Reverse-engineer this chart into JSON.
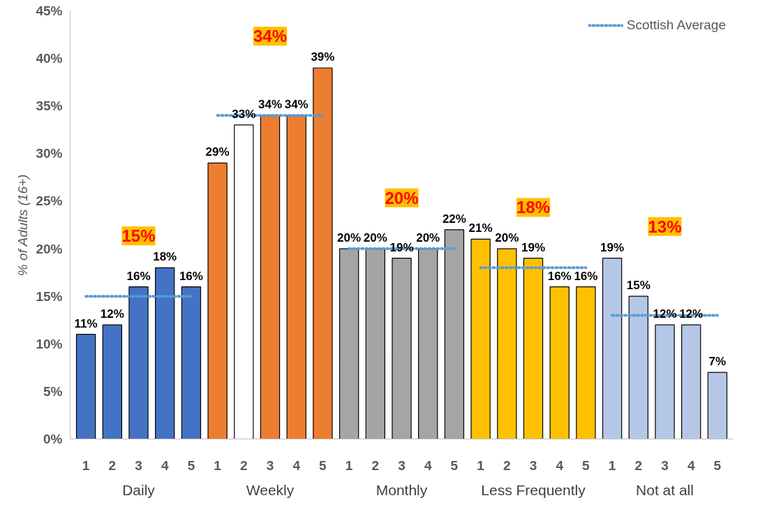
{
  "chart_data": {
    "type": "bar",
    "ylabel": "% of Adults (16+)",
    "categories": [
      "1",
      "2",
      "3",
      "4",
      "5",
      "1",
      "2",
      "3",
      "4",
      "5",
      "1",
      "2",
      "3",
      "4",
      "5",
      "1",
      "2",
      "3",
      "4",
      "5",
      "1",
      "2",
      "3",
      "4",
      "5"
    ],
    "values": [
      11,
      12,
      16,
      18,
      16,
      29,
      33,
      34,
      34,
      39,
      20,
      20,
      19,
      20,
      22,
      21,
      20,
      19,
      16,
      16,
      19,
      15,
      12,
      12,
      7
    ],
    "value_labels": [
      "11%",
      "12%",
      "16%",
      "18%",
      "16%",
      "29%",
      "33%",
      "34%",
      "34%",
      "39%",
      "20%",
      "20%",
      "19%",
      "20%",
      "22%",
      "21%",
      "20%",
      "19%",
      "16%",
      "16%",
      "19%",
      "15%",
      "12%",
      "12%",
      "7%"
    ],
    "colors": [
      "#4472c4",
      "#4472c4",
      "#4472c4",
      "#4472c4",
      "#4472c4",
      "#ed7d31",
      "#ffffff",
      "#ed7d31",
      "#ed7d31",
      "#ed7d31",
      "#a5a5a5",
      "#a5a5a5",
      "#a5a5a5",
      "#a5a5a5",
      "#a5a5a5",
      "#ffc000",
      "#ffc000",
      "#ffc000",
      "#ffc000",
      "#ffc000",
      "#b4c7e7",
      "#b4c7e7",
      "#b4c7e7",
      "#b4c7e7",
      "#b4c7e7"
    ],
    "series": [
      {
        "name": "Scottish Average",
        "type": "line",
        "line_style": "dotted",
        "color": "#5b9bd5",
        "values": [
          15,
          15,
          15,
          15,
          15,
          null,
          null,
          null,
          null,
          null,
          null,
          null,
          null,
          null,
          null,
          null,
          null,
          null,
          null,
          null,
          null,
          null,
          null,
          null,
          null
        ]
      },
      {
        "type": "line",
        "line_style": "dotted",
        "color": "#5b9bd5",
        "values": [
          null,
          null,
          null,
          null,
          null,
          34,
          34,
          34,
          34,
          34,
          null,
          null,
          null,
          null,
          null,
          null,
          null,
          null,
          null,
          null,
          null,
          null,
          null,
          null,
          null
        ]
      },
      {
        "type": "line",
        "line_style": "dotted",
        "color": "#5b9bd5",
        "values": [
          null,
          null,
          null,
          null,
          null,
          null,
          null,
          null,
          null,
          null,
          20,
          20,
          20,
          20,
          20,
          null,
          null,
          null,
          null,
          null,
          null,
          null,
          null,
          null,
          null
        ]
      },
      {
        "type": "line",
        "line_style": "dotted",
        "color": "#5b9bd5",
        "values": [
          null,
          null,
          null,
          null,
          null,
          null,
          null,
          null,
          null,
          null,
          null,
          null,
          null,
          null,
          null,
          18,
          18,
          18,
          18,
          18,
          null,
          null,
          null,
          null,
          null
        ]
      },
      {
        "type": "line",
        "line_style": "dotted",
        "color": "#5b9bd5",
        "values": [
          null,
          null,
          null,
          null,
          null,
          null,
          null,
          null,
          null,
          null,
          null,
          null,
          null,
          null,
          null,
          null,
          null,
          null,
          null,
          null,
          13,
          13,
          13,
          13,
          13
        ]
      }
    ],
    "annotations": [
      "Daily",
      "Weekly",
      "Monthly",
      "Less Frequently",
      "Not at all",
      {
        "text": "15%"
      },
      {
        "text": "34%"
      },
      {
        "text": "20%"
      },
      {
        "text": "18%"
      },
      {
        "text": "13%"
      }
    ],
    "ylim": [
      0,
      45
    ],
    "yticks": [
      {
        "value": 0,
        "label": "0%"
      },
      {
        "value": 5,
        "label": "5%"
      },
      {
        "value": 10,
        "label": "10%"
      },
      {
        "value": 15,
        "label": "15%"
      },
      {
        "value": 20,
        "label": "20%"
      },
      {
        "value": 25,
        "label": "25%"
      },
      {
        "value": 30,
        "label": "30%"
      },
      {
        "value": 35,
        "label": "35%"
      },
      {
        "value": 40,
        "label": "40%"
      },
      {
        "value": 45,
        "label": "45%"
      }
    ],
    "legend": "top right",
    "grid": false
  }
}
